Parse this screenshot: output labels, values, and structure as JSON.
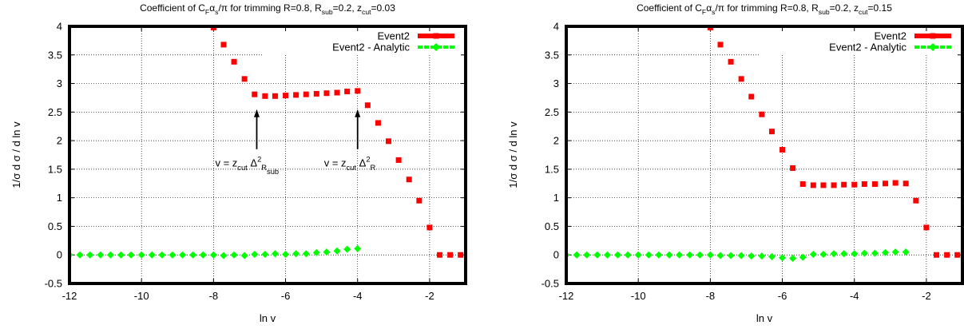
{
  "chart_data": [
    {
      "type": "scatter",
      "title_parts": [
        "Coefficient of C",
        "F",
        "α",
        "s",
        "/π for trimming R=0.8, R",
        "sub",
        "=0.2, z",
        "cut",
        "=0.03"
      ],
      "xlabel": "ln v",
      "ylabel": "1/σ  d σ / d ln v",
      "xlim": [
        -12,
        -1
      ],
      "ylim": [
        -0.5,
        4
      ],
      "x_ticks": [
        -12,
        -10,
        -8,
        -6,
        -4,
        -2
      ],
      "x_tick_labels": [
        "-12",
        "-10",
        "-8",
        "-6",
        "-4",
        "-2"
      ],
      "y_ticks": [
        -0.5,
        0,
        0.5,
        1,
        1.5,
        2,
        2.5,
        3,
        3.5,
        4
      ],
      "y_tick_labels": [
        "-0.5",
        "0",
        "0.5",
        "1",
        "1.5",
        "2",
        "2.5",
        "3",
        "3.5",
        "4"
      ],
      "grid": true,
      "legend_position": "top-right",
      "series": [
        {
          "name": "Event2",
          "color": "#ff0000",
          "marker": "square",
          "points": [
            [
              -8.0,
              3.98
            ],
            [
              -7.72,
              3.68
            ],
            [
              -7.43,
              3.38
            ],
            [
              -7.14,
              3.08
            ],
            [
              -6.86,
              2.81
            ],
            [
              -6.57,
              2.78
            ],
            [
              -6.29,
              2.78
            ],
            [
              -6.0,
              2.79
            ],
            [
              -5.71,
              2.8
            ],
            [
              -5.43,
              2.81
            ],
            [
              -5.14,
              2.82
            ],
            [
              -4.86,
              2.83
            ],
            [
              -4.57,
              2.84
            ],
            [
              -4.29,
              2.86
            ],
            [
              -4.0,
              2.87
            ],
            [
              -3.72,
              2.62
            ],
            [
              -3.43,
              2.31
            ],
            [
              -3.14,
              1.99
            ],
            [
              -2.86,
              1.66
            ],
            [
              -2.57,
              1.32
            ],
            [
              -2.29,
              0.95
            ],
            [
              -2.0,
              0.48
            ],
            [
              -1.72,
              0.0
            ],
            [
              -1.43,
              0.0
            ],
            [
              -1.14,
              0.0
            ]
          ]
        },
        {
          "name": "Event2 - Analytic",
          "color": "#00ff00",
          "marker": "diamond",
          "points": [
            [
              -12.0,
              0.0
            ],
            [
              -11.71,
              0.0
            ],
            [
              -11.43,
              0.0
            ],
            [
              -11.14,
              0.0
            ],
            [
              -10.86,
              0.0
            ],
            [
              -10.57,
              0.0
            ],
            [
              -10.29,
              0.0
            ],
            [
              -10.0,
              0.0
            ],
            [
              -9.71,
              0.0
            ],
            [
              -9.43,
              0.0
            ],
            [
              -9.14,
              0.0
            ],
            [
              -8.86,
              0.0
            ],
            [
              -8.57,
              0.0
            ],
            [
              -8.29,
              0.0
            ],
            [
              -8.0,
              0.0
            ],
            [
              -7.72,
              -0.01
            ],
            [
              -7.43,
              0.0
            ],
            [
              -7.14,
              -0.01
            ],
            [
              -6.86,
              0.01
            ],
            [
              -6.57,
              0.01
            ],
            [
              -6.29,
              0.02
            ],
            [
              -6.0,
              0.01
            ],
            [
              -5.71,
              0.02
            ],
            [
              -5.43,
              0.02
            ],
            [
              -5.14,
              0.04
            ],
            [
              -4.86,
              0.05
            ],
            [
              -4.57,
              0.07
            ],
            [
              -4.29,
              0.1
            ],
            [
              -4.0,
              0.11
            ]
          ]
        }
      ],
      "annotations": [
        {
          "parts": [
            "v = z",
            "cut",
            " Δ",
            "2",
            "R",
            "sub"
          ],
          "arrow_x": -6.8,
          "arrow_from_y": 1.85,
          "arrow_to_y": 2.55
        },
        {
          "parts": [
            "v = z",
            "cut",
            " Δ",
            "2",
            "R"
          ],
          "arrow_x": -4.0,
          "arrow_from_y": 1.85,
          "arrow_to_y": 2.55
        }
      ]
    },
    {
      "type": "scatter",
      "title_parts": [
        "Coefficient of C",
        "F",
        "α",
        "s",
        "/π for trimming R=0.8, R",
        "sub",
        "=0.2, z",
        "cut",
        "=0.15"
      ],
      "xlabel": "ln v",
      "ylabel": "1/σ  d σ / d ln v",
      "xlim": [
        -12,
        -1
      ],
      "ylim": [
        -0.5,
        4
      ],
      "x_ticks": [
        -12,
        -10,
        -8,
        -6,
        -4,
        -2
      ],
      "x_tick_labels": [
        "-12",
        "-10",
        "-8",
        "-6",
        "-4",
        "-2"
      ],
      "y_ticks": [
        -0.5,
        0,
        0.5,
        1,
        1.5,
        2,
        2.5,
        3,
        3.5,
        4
      ],
      "y_tick_labels": [
        "-0.5",
        "0",
        "0.5",
        "1",
        "1.5",
        "2",
        "2.5",
        "3",
        "3.5",
        "4"
      ],
      "grid": true,
      "legend_position": "top-right",
      "series": [
        {
          "name": "Event2",
          "color": "#ff0000",
          "marker": "square",
          "points": [
            [
              -8.0,
              3.98
            ],
            [
              -7.72,
              3.68
            ],
            [
              -7.43,
              3.38
            ],
            [
              -7.14,
              3.08
            ],
            [
              -6.86,
              2.77
            ],
            [
              -6.57,
              2.46
            ],
            [
              -6.29,
              2.16
            ],
            [
              -6.0,
              1.84
            ],
            [
              -5.71,
              1.52
            ],
            [
              -5.43,
              1.24
            ],
            [
              -5.14,
              1.22
            ],
            [
              -4.86,
              1.22
            ],
            [
              -4.57,
              1.22
            ],
            [
              -4.29,
              1.23
            ],
            [
              -4.0,
              1.23
            ],
            [
              -3.72,
              1.24
            ],
            [
              -3.43,
              1.24
            ],
            [
              -3.14,
              1.25
            ],
            [
              -2.86,
              1.26
            ],
            [
              -2.57,
              1.25
            ],
            [
              -2.29,
              0.95
            ],
            [
              -2.0,
              0.48
            ],
            [
              -1.72,
              0.0
            ],
            [
              -1.43,
              0.0
            ],
            [
              -1.14,
              0.0
            ]
          ]
        },
        {
          "name": "Event2 - Analytic",
          "color": "#00ff00",
          "marker": "diamond",
          "points": [
            [
              -12.0,
              0.0
            ],
            [
              -11.71,
              0.0
            ],
            [
              -11.43,
              0.0
            ],
            [
              -11.14,
              0.0
            ],
            [
              -10.86,
              0.0
            ],
            [
              -10.57,
              0.0
            ],
            [
              -10.29,
              0.0
            ],
            [
              -10.0,
              0.0
            ],
            [
              -9.71,
              0.0
            ],
            [
              -9.43,
              0.0
            ],
            [
              -9.14,
              0.0
            ],
            [
              -8.86,
              0.0
            ],
            [
              -8.57,
              0.0
            ],
            [
              -8.29,
              0.0
            ],
            [
              -8.0,
              0.0
            ],
            [
              -7.72,
              -0.01
            ],
            [
              -7.43,
              -0.01
            ],
            [
              -7.14,
              -0.01
            ],
            [
              -6.86,
              -0.02
            ],
            [
              -6.57,
              -0.02
            ],
            [
              -6.29,
              -0.03
            ],
            [
              -6.0,
              -0.05
            ],
            [
              -5.71,
              -0.06
            ],
            [
              -5.43,
              -0.04
            ],
            [
              -5.14,
              0.01
            ],
            [
              -4.86,
              0.01
            ],
            [
              -4.57,
              0.02
            ],
            [
              -4.29,
              0.02
            ],
            [
              -4.0,
              0.02
            ],
            [
              -3.72,
              0.03
            ],
            [
              -3.43,
              0.03
            ],
            [
              -3.14,
              0.04
            ],
            [
              -2.86,
              0.05
            ],
            [
              -2.57,
              0.05
            ]
          ]
        }
      ],
      "annotations": []
    }
  ]
}
